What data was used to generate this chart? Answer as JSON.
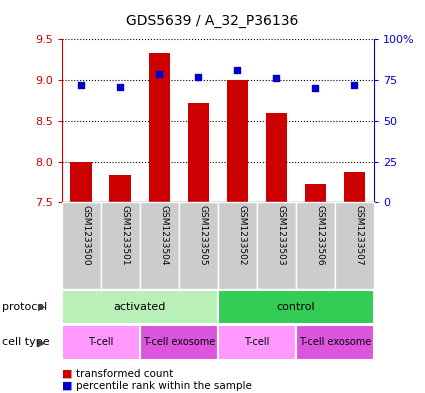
{
  "title": "GDS5639 / A_32_P36136",
  "samples": [
    "GSM1233500",
    "GSM1233501",
    "GSM1233504",
    "GSM1233505",
    "GSM1233502",
    "GSM1233503",
    "GSM1233506",
    "GSM1233507"
  ],
  "transformed_counts": [
    8.0,
    7.83,
    9.33,
    8.72,
    9.0,
    8.6,
    7.73,
    7.87
  ],
  "percentile_ranks": [
    72,
    71,
    79,
    77,
    81,
    76,
    70,
    72
  ],
  "ylim": [
    7.5,
    9.5
  ],
  "yticks": [
    7.5,
    8.0,
    8.5,
    9.0,
    9.5
  ],
  "right_yticks": [
    0,
    25,
    50,
    75,
    100
  ],
  "right_ylabels": [
    "0",
    "25",
    "50",
    "75",
    "100%"
  ],
  "bar_color": "#cc0000",
  "dot_color": "#0000cc",
  "bar_bottom": 7.5,
  "protocol_groups": [
    {
      "label": "activated",
      "start": 0,
      "end": 4,
      "color": "#b8f0b8"
    },
    {
      "label": "control",
      "start": 4,
      "end": 8,
      "color": "#33cc55"
    }
  ],
  "cell_type_groups": [
    {
      "label": "T-cell",
      "start": 0,
      "end": 2,
      "color": "#ff99ff"
    },
    {
      "label": "T-cell exosome",
      "start": 2,
      "end": 4,
      "color": "#dd55dd"
    },
    {
      "label": "T-cell",
      "start": 4,
      "end": 6,
      "color": "#ff99ff"
    },
    {
      "label": "T-cell exosome",
      "start": 6,
      "end": 8,
      "color": "#dd55dd"
    }
  ],
  "left_axis_color": "#cc0000",
  "right_axis_color": "#0000cc",
  "sample_bg_color": "#cccccc",
  "sample_divider_color": "#ffffff"
}
